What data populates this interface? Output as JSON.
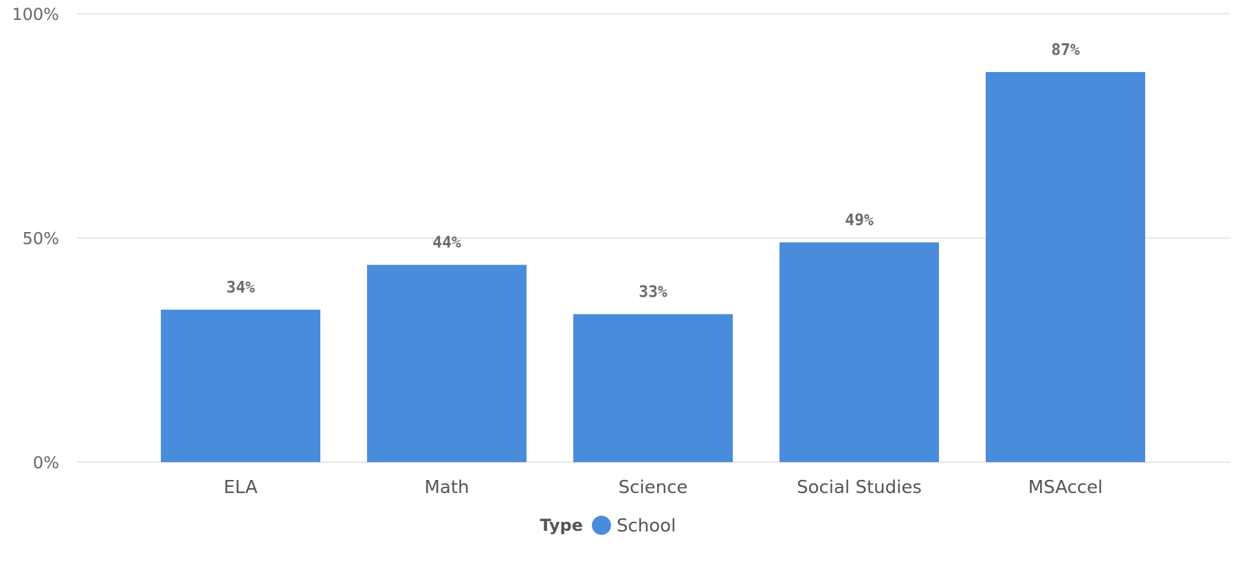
{
  "chart_data": {
    "type": "bar",
    "categories": [
      "ELA",
      "Math",
      "Science",
      "Social Studies",
      "MSAccel"
    ],
    "series": [
      {
        "name": "School",
        "values": [
          34,
          44,
          33,
          49,
          87
        ],
        "labels": [
          "34%",
          "44%",
          "33%",
          "49%",
          "87%"
        ],
        "color": "#4a8cdc"
      }
    ],
    "ylim": [
      0,
      100
    ],
    "yticks": [
      0,
      50,
      100
    ],
    "ytick_labels": [
      "0%",
      "50%",
      "100%"
    ],
    "grid": true,
    "legend": {
      "title": "Type",
      "placement": "bottom-center",
      "entries": [
        "School"
      ]
    }
  }
}
